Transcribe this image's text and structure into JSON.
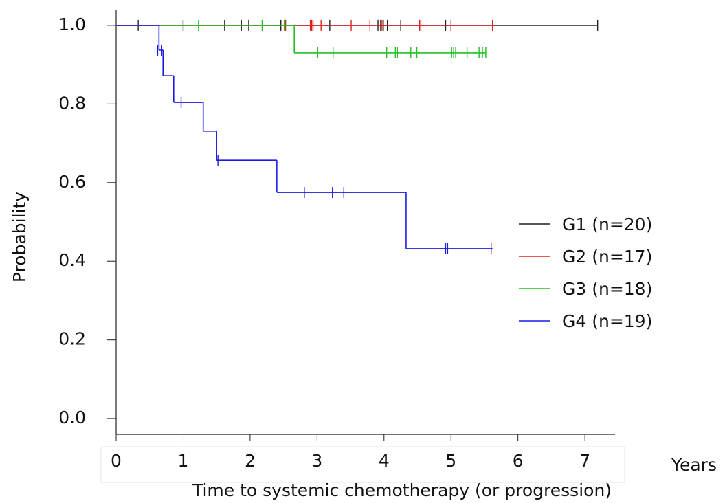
{
  "chart_data": {
    "type": "kaplan-meier",
    "x_label": "Time to systemic chemotherapy (or progression)",
    "x_unit": "Years",
    "y_label": "Probability",
    "xlim": [
      0,
      7.45
    ],
    "ylim": [
      -0.04,
      1.04
    ],
    "xticks": [
      0,
      1,
      2,
      3,
      4,
      5,
      6,
      7
    ],
    "yticks": [
      {
        "value": 0,
        "label": "0.0"
      },
      {
        "value": 0.2,
        "label": "0.2"
      },
      {
        "value": 0.4,
        "label": "0.4"
      },
      {
        "value": 0.6,
        "label": "0.6"
      },
      {
        "value": 0.8,
        "label": "0.8"
      },
      {
        "value": 1,
        "label": "1.0"
      }
    ],
    "legend": "right",
    "series": [
      {
        "name": "G1 (n=20)",
        "color": "#222222",
        "x": [
          0,
          7.18
        ],
        "values": [
          1.0,
          1.0
        ],
        "censor_x": [
          0.33,
          1.0,
          1.62,
          1.87,
          1.98,
          2.46,
          3.19,
          3.91,
          3.95,
          3.99,
          4.05,
          4.25,
          4.92,
          7.19
        ],
        "censor_y": [
          1.0,
          1.0,
          1.0,
          1.0,
          1.0,
          1.0,
          1.0,
          1.0,
          1.0,
          1.0,
          1.0,
          1.0,
          1.0,
          1.0
        ]
      },
      {
        "name": "G2 (n=17)",
        "color": "#e02020",
        "x": [
          0,
          5.62
        ],
        "values": [
          1.0,
          1.0
        ],
        "censor_x": [
          2.53,
          2.9,
          2.92,
          2.94,
          3.06,
          3.51,
          3.79,
          3.97,
          4.53,
          4.55,
          5.0,
          5.62
        ],
        "censor_y": [
          1.0,
          1.0,
          1.0,
          1.0,
          1.0,
          1.0,
          1.0,
          1.0,
          1.0,
          1.0,
          1.0,
          1.0
        ]
      },
      {
        "name": "G3 (n=18)",
        "color": "#20c020",
        "x": [
          0,
          2.66,
          5.52
        ],
        "values": [
          1.0,
          0.93,
          0.93
        ],
        "censor_x": [
          1.23,
          2.18,
          2.51,
          3.01,
          3.24,
          4.04,
          4.17,
          4.2,
          4.4,
          4.49,
          5.01,
          5.04,
          5.07,
          5.24,
          5.42,
          5.47,
          5.52
        ],
        "censor_y": [
          1.0,
          1.0,
          1.0,
          0.93,
          0.93,
          0.93,
          0.93,
          0.93,
          0.93,
          0.93,
          0.93,
          0.93,
          0.93,
          0.93,
          0.93,
          0.93,
          0.93
        ]
      },
      {
        "name": "G4 (n=19)",
        "color": "#1a1ae6",
        "x": [
          0,
          0.64,
          0.7,
          0.86,
          1.3,
          1.5,
          2.4,
          4.33,
          5.62
        ],
        "values": [
          1.0,
          0.937,
          0.872,
          0.804,
          0.731,
          0.657,
          0.575,
          0.432,
          0.432
        ],
        "censor_x": [
          0.62,
          0.68,
          0.97,
          1.52,
          2.81,
          3.23,
          3.4,
          4.92,
          4.95,
          5.6
        ],
        "censor_y": [
          0.937,
          0.937,
          0.804,
          0.657,
          0.575,
          0.575,
          0.575,
          0.432,
          0.432,
          0.432
        ]
      }
    ]
  }
}
